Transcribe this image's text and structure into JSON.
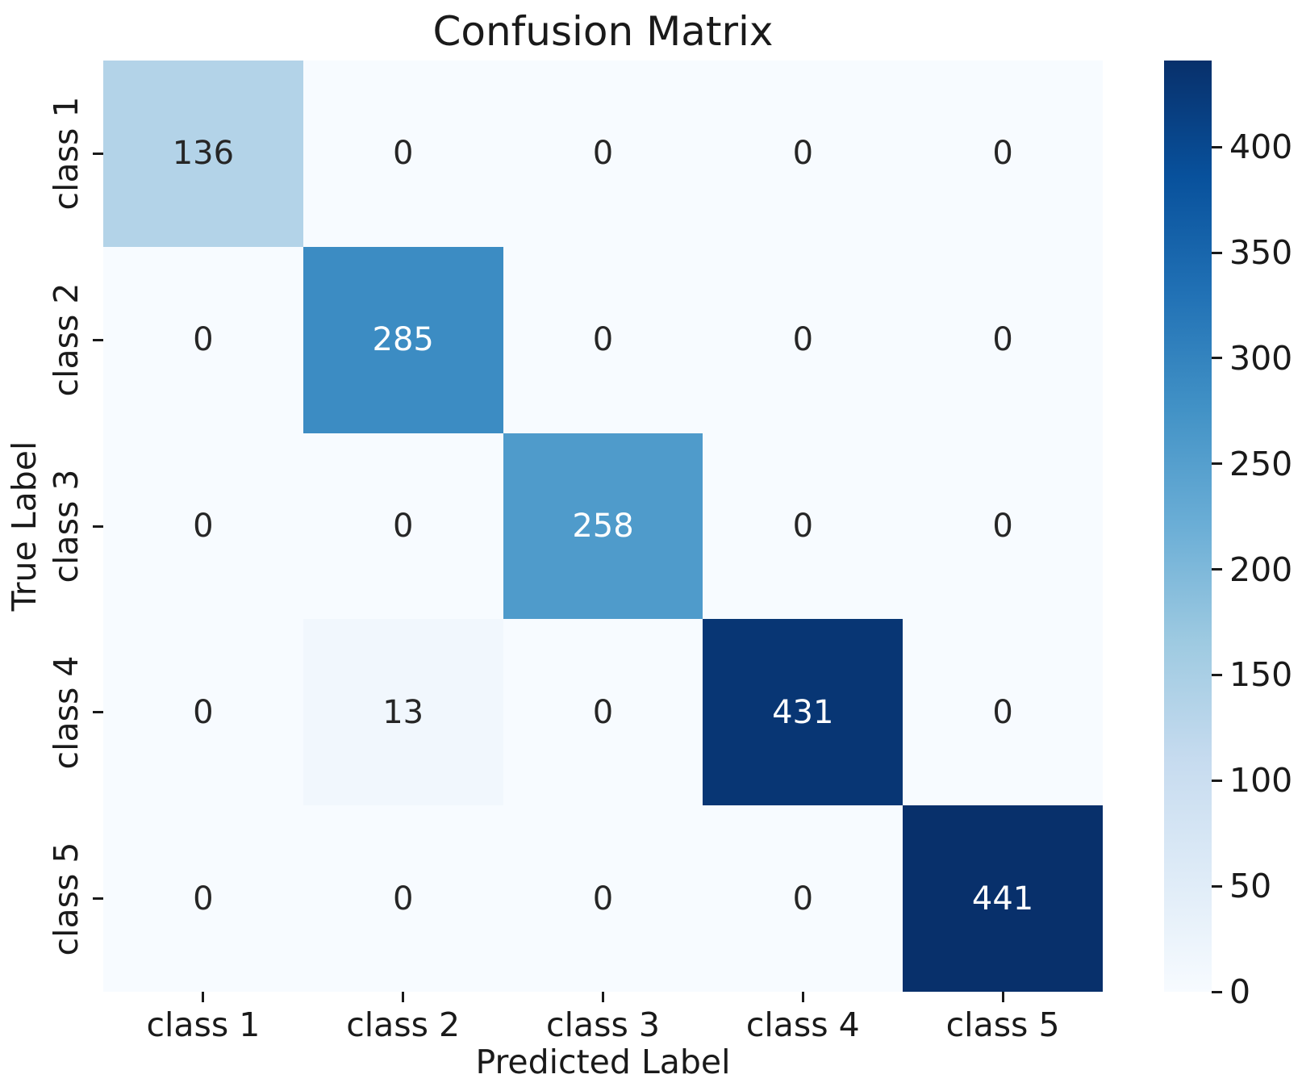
{
  "chart_data": {
    "type": "heatmap",
    "title": "Confusion Matrix",
    "xlabel": "Predicted Label",
    "ylabel": "True Label",
    "x_categories": [
      "class 1",
      "class 2",
      "class 3",
      "class 4",
      "class 5"
    ],
    "y_categories": [
      "class 1",
      "class 2",
      "class 3",
      "class 4",
      "class 5"
    ],
    "matrix": [
      [
        136,
        0,
        0,
        0,
        0
      ],
      [
        0,
        285,
        0,
        0,
        0
      ],
      [
        0,
        0,
        258,
        0,
        0
      ],
      [
        0,
        13,
        0,
        431,
        0
      ],
      [
        0,
        0,
        0,
        0,
        441
      ]
    ],
    "vmin": 0,
    "vmax": 441,
    "annotated": true,
    "grid": false,
    "legend_position": "right-colorbar",
    "colorbar_tick_labels": [
      "0",
      "50",
      "100",
      "150",
      "200",
      "250",
      "300",
      "350",
      "400"
    ],
    "colormap": {
      "name": "Blues",
      "anchors": [
        "#f7fbff",
        "#deebf7",
        "#c6dbef",
        "#9ecae1",
        "#6baed6",
        "#4292c6",
        "#2171b5",
        "#08519c",
        "#08306b"
      ]
    },
    "annotation_colors": {
      "dark": "#262626",
      "light": "#ffffff"
    },
    "tick_color": "#1a1a1a",
    "background_color": "#ffffff"
  }
}
